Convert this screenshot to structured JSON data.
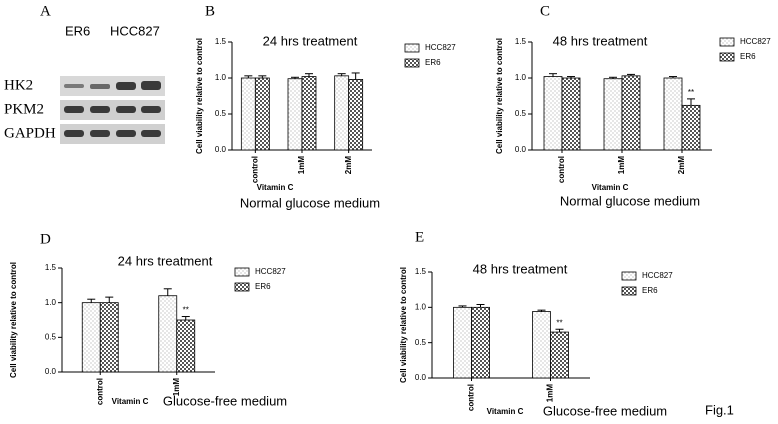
{
  "blot": {
    "panel": "A",
    "lanes": [
      "ER6",
      "HCC827"
    ],
    "rows": [
      "HK2",
      "PKM2",
      "GAPDH"
    ]
  },
  "figure_label": "Fig.1",
  "chart_data": [
    {
      "type": "bar",
      "panel": "B",
      "title": "24 hrs treatment",
      "ylabel": "Cell viability relative to control",
      "xlabel": "Vitamin C",
      "subtitle": "Normal glucose medium",
      "categories": [
        "control",
        "1mM",
        "2mM"
      ],
      "series": [
        {
          "name": "HCC827",
          "color": "#ffffff",
          "values": [
            1.0,
            0.99,
            1.03
          ],
          "errors": [
            0.03,
            0.02,
            0.03
          ]
        },
        {
          "name": "ER6",
          "color": "#555555",
          "values": [
            1.0,
            1.02,
            0.98
          ],
          "errors": [
            0.03,
            0.04,
            0.09
          ]
        }
      ],
      "ylim": [
        0,
        1.5
      ],
      "yticks": [
        {
          "value": 0,
          "label": "0.0"
        },
        0.5,
        {
          "value": 1,
          "label": "1.0"
        },
        1.5
      ]
    },
    {
      "type": "bar",
      "panel": "C",
      "title": "48 hrs treatment",
      "ylabel": "Cell viability relative to control",
      "xlabel": "Vitamin C",
      "subtitle": "Normal glucose medium",
      "categories": [
        "control",
        "1mM",
        "2mM"
      ],
      "series": [
        {
          "name": "HCC827",
          "color": "#ffffff",
          "values": [
            1.02,
            0.99,
            1.0
          ],
          "errors": [
            0.04,
            0.02,
            0.02
          ]
        },
        {
          "name": "ER6",
          "color": "#555555",
          "values": [
            1.0,
            1.03,
            0.62
          ],
          "errors": [
            0.02,
            0.02,
            0.09
          ],
          "significance": [
            null,
            null,
            "**"
          ]
        }
      ],
      "ylim": [
        0,
        1.5
      ],
      "yticks": [
        {
          "value": 0,
          "label": "0.0"
        },
        0.5,
        {
          "value": 1,
          "label": "1.0"
        },
        1.5
      ]
    },
    {
      "type": "bar",
      "panel": "D",
      "title": "24 hrs treatment",
      "ylabel": "Cell viability relative to control",
      "xlabel": "Vitamin C",
      "subtitle": "Glucose-free medium",
      "categories": [
        "control",
        "1mM"
      ],
      "series": [
        {
          "name": "HCC827",
          "color": "#ffffff",
          "values": [
            1.0,
            1.1
          ],
          "errors": [
            0.05,
            0.1
          ]
        },
        {
          "name": "ER6",
          "color": "#555555",
          "values": [
            1.0,
            0.75
          ],
          "errors": [
            0.08,
            0.05
          ],
          "significance": [
            null,
            "**"
          ]
        }
      ],
      "ylim": [
        0,
        1.5
      ],
      "yticks": [
        {
          "value": 0,
          "label": "0.0"
        },
        0.5,
        {
          "value": 1,
          "label": "1.0"
        },
        1.5
      ]
    },
    {
      "type": "bar",
      "panel": "E",
      "title": "48 hrs treatment",
      "ylabel": "Cell viability relative to control",
      "xlabel": "Vitamin C",
      "subtitle": "Glucose-free medium",
      "categories": [
        "control",
        "1mM"
      ],
      "series": [
        {
          "name": "HCC827",
          "color": "#ffffff",
          "values": [
            1.0,
            0.94
          ],
          "errors": [
            0.02,
            0.02
          ]
        },
        {
          "name": "ER6",
          "color": "#555555",
          "values": [
            1.0,
            0.65
          ],
          "errors": [
            0.04,
            0.04
          ],
          "significance": [
            null,
            "**"
          ]
        }
      ],
      "ylim": [
        0,
        1.5
      ],
      "yticks": [
        {
          "value": 0,
          "label": "0.0"
        },
        0.5,
        {
          "value": 1,
          "label": "1.0"
        },
        1.5
      ]
    }
  ]
}
